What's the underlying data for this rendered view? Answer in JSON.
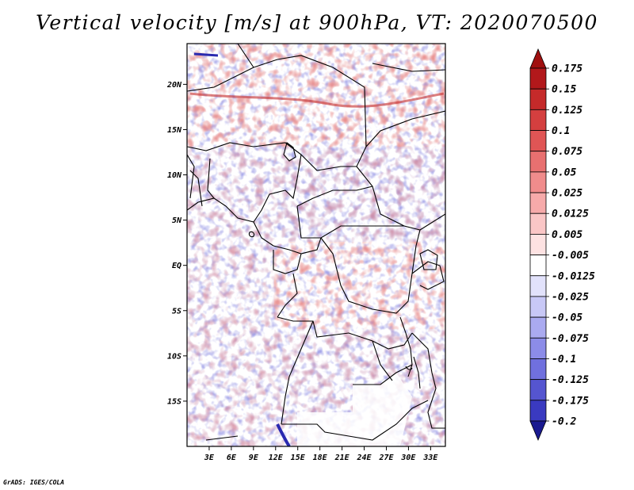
{
  "title": "Vertical velocity [m/s] at 900hPa, VT: 2020070500",
  "footer": "GrADS: IGES/COLA",
  "map": {
    "lon_range": [
      0,
      35
    ],
    "lat_range": [
      -20,
      24.5
    ],
    "lat_ticks": [
      {
        "value": 20,
        "label": "20N"
      },
      {
        "value": 15,
        "label": "15N"
      },
      {
        "value": 10,
        "label": "10N"
      },
      {
        "value": 5,
        "label": "5N"
      },
      {
        "value": 0,
        "label": "EQ"
      },
      {
        "value": -5,
        "label": "5S"
      },
      {
        "value": -10,
        "label": "10S"
      },
      {
        "value": -15,
        "label": "15S"
      }
    ],
    "lon_ticks": [
      {
        "value": 3,
        "label": "3E"
      },
      {
        "value": 6,
        "label": "6E"
      },
      {
        "value": 9,
        "label": "9E"
      },
      {
        "value": 12,
        "label": "12E"
      },
      {
        "value": 15,
        "label": "15E"
      },
      {
        "value": 18,
        "label": "18E"
      },
      {
        "value": 21,
        "label": "21E"
      },
      {
        "value": 24,
        "label": "24E"
      },
      {
        "value": 27,
        "label": "27E"
      },
      {
        "value": 30,
        "label": "30E"
      },
      {
        "value": 33,
        "label": "33E"
      }
    ]
  },
  "colorbar": {
    "levels": [
      {
        "label": "0.175",
        "color": "#b2181b"
      },
      {
        "label": "0.15",
        "color": "#c52a2a"
      },
      {
        "label": "0.125",
        "color": "#d43f3f"
      },
      {
        "label": "0.1",
        "color": "#e05555"
      },
      {
        "label": "0.075",
        "color": "#e87070"
      },
      {
        "label": "0.05",
        "color": "#f08c8c"
      },
      {
        "label": "0.025",
        "color": "#f6aaaa"
      },
      {
        "label": "0.0125",
        "color": "#fac6c6"
      },
      {
        "label": "0.005",
        "color": "#fde2e2"
      },
      {
        "label": "-0.005",
        "color": "#ffffff"
      },
      {
        "label": "-0.0125",
        "color": "#e2e2fb"
      },
      {
        "label": "-0.025",
        "color": "#c8c8f6"
      },
      {
        "label": "-0.05",
        "color": "#aaaaf0"
      },
      {
        "label": "-0.075",
        "color": "#8c8ce8"
      },
      {
        "label": "-0.1",
        "color": "#7070de"
      },
      {
        "label": "-0.125",
        "color": "#5555d0"
      },
      {
        "label": "-0.175",
        "color": "#3a3ac0"
      },
      {
        "label": "-0.2",
        "color": "#1f1fa8"
      }
    ],
    "top_arrow_color": "#a01010",
    "bottom_arrow_color": "#1a1a90"
  }
}
